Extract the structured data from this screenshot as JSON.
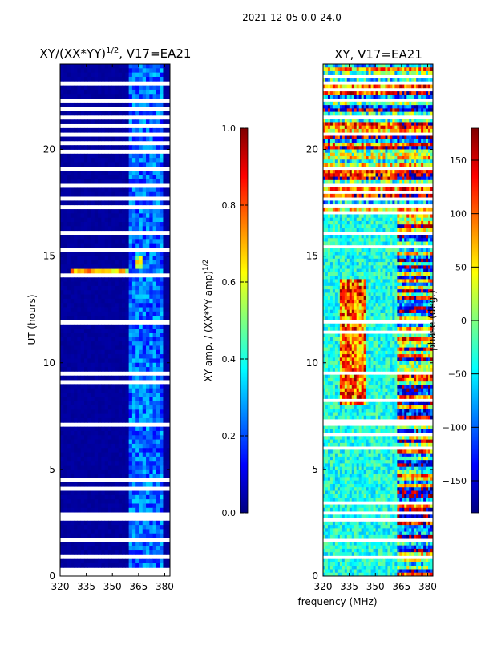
{
  "chart_data": [
    {
      "type": "heatmap",
      "suptitle": "2021-12-05 0.0-24.0",
      "title_main": "XY/(XX*YY)",
      "title_exp": "1/2",
      "title_suffix": ", V17=EA21",
      "xlabel": "",
      "ylabel": "UT (hours)",
      "xlim": [
        320,
        383
      ],
      "ylim": [
        0,
        24
      ],
      "x_ticks": [
        320,
        335,
        350,
        365,
        380
      ],
      "y_ticks": [
        0,
        5,
        10,
        15,
        20
      ],
      "colorbar": {
        "label_main": "XY amp. / (XX*YY amp)",
        "label_exp": "1/2",
        "ticks": [
          "0.0",
          "0.2",
          "0.4",
          "0.6",
          "0.8",
          "1.0"
        ],
        "range": [
          0.0,
          1.0
        ],
        "colormap": "jet"
      },
      "features": [
        {
          "description": "low amplitude below 360 MHz",
          "value": 0.02
        },
        {
          "description": "elevated amplitude 360-380 MHz",
          "value": 0.3
        },
        {
          "description": "bright feature near 365 MHz at 14.3-15.1 h",
          "value": 0.6
        }
      ]
    },
    {
      "type": "heatmap",
      "title": "XY, V17=EA21",
      "xlabel": "frequency (MHz)",
      "ylabel": "",
      "xlim": [
        320,
        383
      ],
      "ylim": [
        0,
        24
      ],
      "x_ticks": [
        320,
        335,
        350,
        365,
        380
      ],
      "y_ticks": [
        0,
        5,
        10,
        15,
        20
      ],
      "colorbar": {
        "label": "phase (deg.)",
        "ticks": [
          "150",
          "100",
          "50",
          "0",
          "−50",
          "−100",
          "−150"
        ],
        "range": [
          -180,
          180
        ],
        "colormap": "jet"
      }
    }
  ],
  "colors": {
    "jet": [
      "#00007f",
      "#0000ff",
      "#007fff",
      "#00ffff",
      "#7fff7f",
      "#ffff00",
      "#ff7f00",
      "#ff0000",
      "#7f0000"
    ]
  }
}
